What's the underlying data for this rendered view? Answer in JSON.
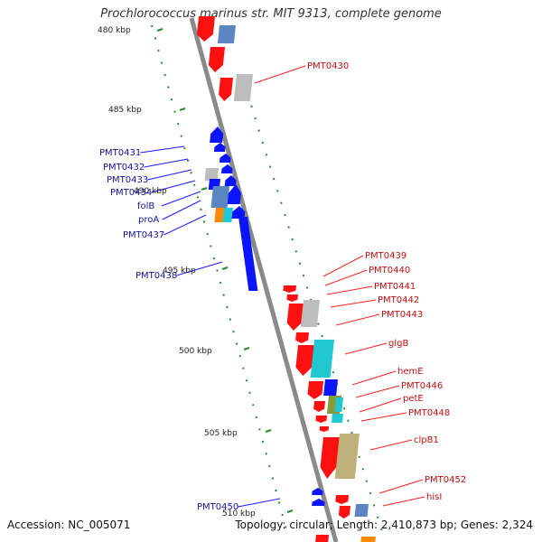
{
  "title": "Prochlorococcus marinus str. MIT 9313, complete genome",
  "footer": {
    "accession": "Accession: NC_005071",
    "summary": "Topology: circular; Length: 2,410,873 bp; Genes: 2,324"
  },
  "colors": {
    "forward": "#0a14ff",
    "reverse": "#ff0a0a",
    "backbone": "#888888",
    "scale": "#2a8a2a",
    "label_forward": "#1515a0",
    "label_reverse": "#c01010"
  },
  "ticks": [
    "480 kbp",
    "485 kbp",
    "490 kbp",
    "495 kbp",
    "500 kbp",
    "505 kbp",
    "510 kbp"
  ],
  "labels_left": [
    "PMT0431",
    "PMT0432",
    "PMT0433",
    "PMT0434",
    "folB",
    "proA",
    "PMT0437",
    "PMT0438",
    "PMT0450"
  ],
  "labels_right": [
    "PMT0430",
    "PMT0439",
    "PMT0440",
    "PMT0441",
    "PMT0442",
    "PMT0443",
    "glgB",
    "hemE",
    "PMT0446",
    "petE",
    "PMT0448",
    "clpB1",
    "PMT0452",
    "hisI"
  ]
}
